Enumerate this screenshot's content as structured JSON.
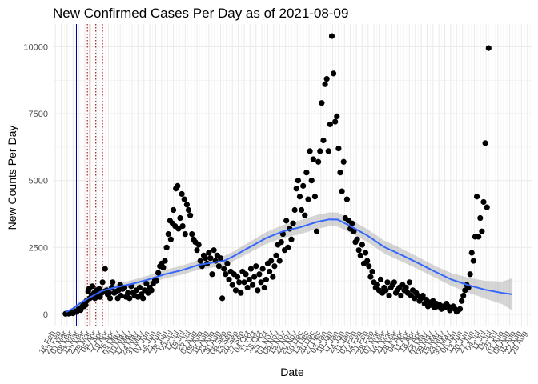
{
  "chart_data": {
    "type": "scatter",
    "title": "New Confirmed Cases Per Day as of 2021-08-09",
    "xlabel": "Date",
    "ylabel": "New Counts Per Day",
    "ylim": [
      -450,
      10850
    ],
    "yticks": [
      0,
      2500,
      5000,
      7500,
      10000
    ],
    "grid": true,
    "xlim_day": [
      -3,
      565
    ],
    "xtick_labels": [
      "16 Feb",
      "23 Feb",
      "01 Mar",
      "08 Mar",
      "15 Mar",
      "22 Mar",
      "29 Mar",
      "05 Apr",
      "12 Apr",
      "19 Apr",
      "26 Apr",
      "03 May",
      "10 May",
      "17 May",
      "24 May",
      "31 May",
      "07 Jun",
      "14 Jun",
      "21 Jun",
      "28 Jun",
      "05 Jul",
      "12 Jul",
      "19 Jul",
      "26 Jul",
      "02 Aug",
      "09 Aug",
      "16 Aug",
      "23 Aug",
      "30 Aug",
      "06 Sep",
      "13 Sep",
      "20 Sep",
      "27 Sep",
      "04 Oct",
      "11 Oct",
      "18 Oct",
      "25 Oct",
      "01 Nov",
      "08 Nov",
      "15 Nov",
      "22 Nov",
      "29 Nov",
      "06 Dec",
      "13 Dec",
      "20 Dec",
      "27 Dec",
      "03 Jan",
      "10 Jan",
      "17 Jan",
      "24 Jan",
      "31 Jan",
      "07 Feb",
      "14 Feb",
      "21 Feb",
      "28 Feb",
      "07 Mar",
      "14 Mar",
      "21 Mar",
      "28 Mar",
      "04 Apr",
      "11 Apr",
      "18 Apr",
      "25 Apr",
      "02 May",
      "09 May",
      "16 May",
      "23 May",
      "30 May",
      "06 Jun",
      "13 Jun",
      "20 Jun",
      "27 Jun",
      "04 Jul",
      "11 Jul",
      "18 Jul",
      "25 Jul",
      "01 Aug",
      "08 Aug",
      "15 Aug",
      "22 Aug",
      "29 Aug"
    ],
    "reference_lines": [
      {
        "day": 25,
        "color": "#00008b",
        "style": "solid"
      },
      {
        "day": 38,
        "color": "#8b0000",
        "style": "dotted"
      },
      {
        "day": 41,
        "color": "#cc0000",
        "style": "solid"
      },
      {
        "day": 48,
        "color": "#8b0000",
        "style": "dotted"
      },
      {
        "day": 56,
        "color": "#cc0000",
        "style": "dotted"
      }
    ],
    "trend": {
      "name": "loess smooth",
      "color": "#3366ff",
      "points": [
        [
          12,
          80
        ],
        [
          20,
          200
        ],
        [
          30,
          430
        ],
        [
          40,
          620
        ],
        [
          55,
          870
        ],
        [
          70,
          1000
        ],
        [
          90,
          1130
        ],
        [
          110,
          1300
        ],
        [
          130,
          1500
        ],
        [
          150,
          1650
        ],
        [
          170,
          1850
        ],
        [
          190,
          1950
        ],
        [
          200,
          2000
        ],
        [
          210,
          2150
        ],
        [
          230,
          2500
        ],
        [
          250,
          2850
        ],
        [
          270,
          3100
        ],
        [
          290,
          3250
        ],
        [
          310,
          3450
        ],
        [
          325,
          3550
        ],
        [
          335,
          3540
        ],
        [
          350,
          3300
        ],
        [
          370,
          2950
        ],
        [
          390,
          2520
        ],
        [
          410,
          2230
        ],
        [
          430,
          1920
        ],
        [
          450,
          1600
        ],
        [
          470,
          1300
        ],
        [
          490,
          1090
        ],
        [
          510,
          920
        ],
        [
          530,
          800
        ],
        [
          542,
          750
        ]
      ],
      "band_halfwidth": [
        40,
        50,
        60,
        80,
        110,
        120,
        140,
        150,
        160,
        170,
        180,
        180,
        180,
        180,
        200,
        220,
        240,
        260,
        260,
        260,
        260,
        250,
        240,
        240,
        240,
        230,
        220,
        240,
        280,
        330,
        420,
        600
      ]
    },
    "series": [
      {
        "name": "daily new cases",
        "color": "#000000",
        "points": [
          [
            12,
            20
          ],
          [
            14,
            35
          ],
          [
            16,
            25
          ],
          [
            18,
            45
          ],
          [
            19,
            60
          ],
          [
            21,
            40
          ],
          [
            22,
            80
          ],
          [
            24,
            120
          ],
          [
            25,
            90
          ],
          [
            27,
            150
          ],
          [
            28,
            200
          ],
          [
            30,
            160
          ],
          [
            31,
            260
          ],
          [
            33,
            380
          ],
          [
            34,
            300
          ],
          [
            36,
            350
          ],
          [
            37,
            500
          ],
          [
            39,
            850
          ],
          [
            40,
            950
          ],
          [
            41,
            600
          ],
          [
            43,
            700
          ],
          [
            44,
            1050
          ],
          [
            46,
            800
          ],
          [
            47,
            600
          ],
          [
            49,
            900
          ],
          [
            50,
            750
          ],
          [
            52,
            950
          ],
          [
            53,
            650
          ],
          [
            55,
            800
          ],
          [
            56,
            1200
          ],
          [
            58,
            850
          ],
          [
            59,
            1700
          ],
          [
            61,
            900
          ],
          [
            62,
            750
          ],
          [
            64,
            800
          ],
          [
            65,
            600
          ],
          [
            67,
            1000
          ],
          [
            68,
            1200
          ],
          [
            70,
            800
          ],
          [
            72,
            850
          ],
          [
            74,
            600
          ],
          [
            75,
            900
          ],
          [
            77,
            1100
          ],
          [
            78,
            700
          ],
          [
            80,
            950
          ],
          [
            82,
            1000
          ],
          [
            84,
            650
          ],
          [
            86,
            800
          ],
          [
            88,
            600
          ],
          [
            90,
            1050
          ],
          [
            92,
            800
          ],
          [
            94,
            700
          ],
          [
            96,
            900
          ],
          [
            98,
            650
          ],
          [
            100,
            1000
          ],
          [
            102,
            750
          ],
          [
            104,
            600
          ],
          [
            106,
            900
          ],
          [
            108,
            1150
          ],
          [
            110,
            800
          ],
          [
            112,
            1000
          ],
          [
            114,
            900
          ],
          [
            116,
            1150
          ],
          [
            118,
            1300
          ],
          [
            120,
            1250
          ],
          [
            122,
            1550
          ],
          [
            124,
            1800
          ],
          [
            126,
            1900
          ],
          [
            128,
            1750
          ],
          [
            130,
            2000
          ],
          [
            132,
            2500
          ],
          [
            134,
            3000
          ],
          [
            136,
            3500
          ],
          [
            137,
            2800
          ],
          [
            139,
            3400
          ],
          [
            140,
            3900
          ],
          [
            142,
            3300
          ],
          [
            143,
            4700
          ],
          [
            145,
            4800
          ],
          [
            146,
            3200
          ],
          [
            148,
            3600
          ],
          [
            150,
            4500
          ],
          [
            151,
            3300
          ],
          [
            153,
            4300
          ],
          [
            154,
            3000
          ],
          [
            156,
            4100
          ],
          [
            158,
            3900
          ],
          [
            160,
            3700
          ],
          [
            162,
            3000
          ],
          [
            164,
            2800
          ],
          [
            166,
            2700
          ],
          [
            168,
            2400
          ],
          [
            170,
            2600
          ],
          [
            172,
            2000
          ],
          [
            174,
            1800
          ],
          [
            176,
            2200
          ],
          [
            178,
            2100
          ],
          [
            180,
            1900
          ],
          [
            182,
            2300
          ],
          [
            184,
            2100
          ],
          [
            186,
            1500
          ],
          [
            188,
            2400
          ],
          [
            190,
            2000
          ],
          [
            192,
            2200
          ],
          [
            194,
            1800
          ],
          [
            196,
            2100
          ],
          [
            198,
            600
          ],
          [
            200,
            1700
          ],
          [
            202,
            1500
          ],
          [
            204,
            1900
          ],
          [
            206,
            1300
          ],
          [
            208,
            1600
          ],
          [
            210,
            1100
          ],
          [
            212,
            1500
          ],
          [
            214,
            900
          ],
          [
            216,
            1400
          ],
          [
            218,
            1200
          ],
          [
            220,
            800
          ],
          [
            222,
            1600
          ],
          [
            224,
            1200
          ],
          [
            226,
            1500
          ],
          [
            228,
            1000
          ],
          [
            230,
            1300
          ],
          [
            232,
            1700
          ],
          [
            234,
            1100
          ],
          [
            236,
            1400
          ],
          [
            238,
            1800
          ],
          [
            240,
            900
          ],
          [
            242,
            1500
          ],
          [
            244,
            1200
          ],
          [
            246,
            1700
          ],
          [
            248,
            1000
          ],
          [
            250,
            1300
          ],
          [
            252,
            1900
          ],
          [
            254,
            1600
          ],
          [
            256,
            2000
          ],
          [
            258,
            1400
          ],
          [
            260,
            1800
          ],
          [
            262,
            2200
          ],
          [
            264,
            2600
          ],
          [
            266,
            2000
          ],
          [
            268,
            2700
          ],
          [
            270,
            3000
          ],
          [
            272,
            2400
          ],
          [
            274,
            3500
          ],
          [
            276,
            2500
          ],
          [
            278,
            3200
          ],
          [
            280,
            2800
          ],
          [
            282,
            3400
          ],
          [
            284,
            3900
          ],
          [
            286,
            4700
          ],
          [
            288,
            5000
          ],
          [
            290,
            4400
          ],
          [
            292,
            3900
          ],
          [
            294,
            4800
          ],
          [
            296,
            3700
          ],
          [
            298,
            5300
          ],
          [
            300,
            4300
          ],
          [
            302,
            6100
          ],
          [
            304,
            5000
          ],
          [
            306,
            5800
          ],
          [
            308,
            4400
          ],
          [
            310,
            3100
          ],
          [
            312,
            5700
          ],
          [
            314,
            6100
          ],
          [
            316,
            7900
          ],
          [
            318,
            6500
          ],
          [
            320,
            8600
          ],
          [
            322,
            8800
          ],
          [
            324,
            6100
          ],
          [
            326,
            7100
          ],
          [
            328,
            10400
          ],
          [
            330,
            9000
          ],
          [
            332,
            7200
          ],
          [
            334,
            7400
          ],
          [
            336,
            6200
          ],
          [
            338,
            5300
          ],
          [
            340,
            4600
          ],
          [
            342,
            5700
          ],
          [
            344,
            3600
          ],
          [
            346,
            4300
          ],
          [
            348,
            3500
          ],
          [
            350,
            3200
          ],
          [
            352,
            3400
          ],
          [
            354,
            3100
          ],
          [
            356,
            2700
          ],
          [
            358,
            2800
          ],
          [
            360,
            2400
          ],
          [
            362,
            2200
          ],
          [
            364,
            2600
          ],
          [
            366,
            1900
          ],
          [
            368,
            2300
          ],
          [
            370,
            2000
          ],
          [
            372,
            1800
          ],
          [
            374,
            1400
          ],
          [
            376,
            1600
          ],
          [
            378,
            1200
          ],
          [
            380,
            1000
          ],
          [
            382,
            1100
          ],
          [
            384,
            900
          ],
          [
            386,
            1300
          ],
          [
            388,
            800
          ],
          [
            390,
            1000
          ],
          [
            392,
            900
          ],
          [
            394,
            1200
          ],
          [
            396,
            700
          ],
          [
            398,
            1000
          ],
          [
            400,
            1100
          ],
          [
            402,
            1200
          ],
          [
            404,
            800
          ],
          [
            406,
            900
          ],
          [
            408,
            1000
          ],
          [
            410,
            700
          ],
          [
            412,
            1100
          ],
          [
            414,
            900
          ],
          [
            416,
            1000
          ],
          [
            418,
            800
          ],
          [
            420,
            1200
          ],
          [
            422,
            700
          ],
          [
            424,
            900
          ],
          [
            426,
            600
          ],
          [
            428,
            800
          ],
          [
            430,
            700
          ],
          [
            432,
            500
          ],
          [
            434,
            600
          ],
          [
            436,
            700
          ],
          [
            438,
            400
          ],
          [
            440,
            550
          ],
          [
            442,
            300
          ],
          [
            444,
            450
          ],
          [
            446,
            350
          ],
          [
            448,
            500
          ],
          [
            450,
            250
          ],
          [
            452,
            400
          ],
          [
            454,
            300
          ],
          [
            456,
            350
          ],
          [
            458,
            200
          ],
          [
            460,
            300
          ],
          [
            462,
            250
          ],
          [
            464,
            400
          ],
          [
            466,
            300
          ],
          [
            468,
            150
          ],
          [
            470,
            250
          ],
          [
            472,
            300
          ],
          [
            474,
            200
          ],
          [
            476,
            100
          ],
          [
            478,
            150
          ],
          [
            480,
            200
          ],
          [
            482,
            500
          ],
          [
            484,
            700
          ],
          [
            486,
            900
          ],
          [
            488,
            1100
          ],
          [
            490,
            1000
          ],
          [
            492,
            1500
          ],
          [
            494,
            2300
          ],
          [
            496,
            2000
          ],
          [
            498,
            2900
          ],
          [
            500,
            4400
          ],
          [
            502,
            2900
          ],
          [
            504,
            3600
          ],
          [
            506,
            3100
          ],
          [
            508,
            4200
          ],
          [
            510,
            6400
          ],
          [
            512,
            4000
          ],
          [
            514,
            9950
          ]
        ]
      }
    ]
  }
}
